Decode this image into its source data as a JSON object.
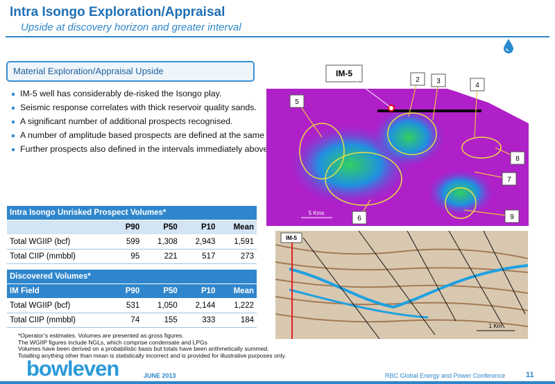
{
  "header": {
    "title": "Intra Isongo Exploration/Appraisal",
    "subtitle": "Upside at discovery horizon and greater interval"
  },
  "callout": {
    "title": "Material Exploration/Appraisal Upside"
  },
  "bullets": [
    "IM-5 well has considerably de-risked the Isongo play.",
    "Seismic response correlates with thick reservoir quality sands.",
    "A significant number of additional prospects recognised.",
    "A number of amplitude based prospects are defined at the same horizon as the Intra Isongo discovery.",
    "Further prospects also defined in the intervals immediately above and below Intra Isongo horizon - “greater interval”."
  ],
  "table1": {
    "title": "Intra Isongo Unrisked Prospect Volumes*",
    "columns": [
      "P90",
      "P50",
      "P10",
      "Mean"
    ],
    "rows": [
      [
        "Total WGIIP (bcf)",
        "599",
        "1,308",
        "2,943",
        "1,591"
      ],
      [
        "Total CIIP (mmbbl)",
        "95",
        "221",
        "517",
        "273"
      ]
    ]
  },
  "table2": {
    "title": "Discovered Volumes*",
    "columns": [
      "IM Field",
      "P90",
      "P50",
      "P10",
      "Mean"
    ],
    "rows": [
      [
        "Total WGIIP (bcf)",
        "531",
        "1,050",
        "2,144",
        "1,222"
      ],
      [
        "Total CIIP (mmbbl)",
        "74",
        "155",
        "333",
        "184"
      ]
    ]
  },
  "footnotes": [
    "*Operator’s estimates. Volumes are presented as gross figures.",
    "The WGIIP figures include NGLs, which comprise condensate and LPGs",
    "Volumes have been derived on a probabilistic basis but totals have been arithmetically summed.",
    "Totalling anything other than mean is statistically incorrect and is provided for illustrative purposes only."
  ],
  "map": {
    "well": "IM-5",
    "prospects": [
      "2",
      "3",
      "4",
      "5",
      "6",
      "7",
      "8",
      "9"
    ],
    "scale": "5 Kms"
  },
  "seismic": {
    "well": "IM-5",
    "scale": "1 Km"
  },
  "footer": {
    "logo": "bowleven",
    "date": "JUNE 2013",
    "event": "RBC Global Energy and Power Conference",
    "page": "11"
  }
}
